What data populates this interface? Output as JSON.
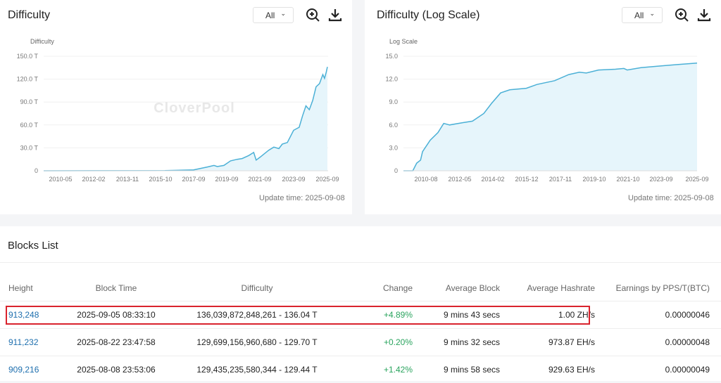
{
  "charts": [
    {
      "title": "Difficulty",
      "range": "All",
      "y_label": "Difficulty",
      "update": "Update time: 2025-09-08"
    },
    {
      "title": "Difficulty (Log Scale)",
      "range": "All",
      "y_label": "Log Scale",
      "update": "Update time: 2025-09-08"
    }
  ],
  "watermark": "CloverPool",
  "icons": [
    "zoom-in-icon",
    "download-icon",
    "chevron-down-icon"
  ],
  "colors": {
    "line": "#4bb0d6",
    "area": "#e6f5fb",
    "positive": "#2aa45e",
    "link": "#1e6fae",
    "highlight": "#d9232d"
  },
  "chart_data": [
    {
      "type": "area",
      "title": "",
      "ylabel": "Difficulty",
      "ylim": [
        0,
        150
      ],
      "yticks": [
        "0",
        "30.0 T",
        "60.0 T",
        "90.0 T",
        "120.0 T",
        "150.0 T"
      ],
      "xticks": [
        "2010-05",
        "2012-02",
        "2013-11",
        "2015-10",
        "2017-09",
        "2019-09",
        "2021-09",
        "2023-09",
        "2025-09"
      ],
      "grid": true,
      "unit": "T",
      "x": [
        2009.0,
        2016.0,
        2017.67,
        2018.5,
        2018.9,
        2019.1,
        2019.5,
        2019.9,
        2020.3,
        2020.6,
        2021.0,
        2021.3,
        2021.45,
        2021.7,
        2022.2,
        2022.5,
        2022.8,
        2023.0,
        2023.3,
        2023.67,
        2024.0,
        2024.2,
        2024.4,
        2024.6,
        2024.8,
        2025.0,
        2025.2,
        2025.4,
        2025.5,
        2025.6,
        2025.67
      ],
      "y": [
        0,
        0.3,
        1.2,
        5,
        7,
        5.5,
        7,
        13,
        15,
        16,
        20,
        24,
        14,
        18,
        27,
        31,
        29,
        35,
        37,
        53,
        57,
        72,
        85,
        80,
        92,
        110,
        114,
        126,
        121,
        129,
        136
      ]
    },
    {
      "type": "area",
      "title": "",
      "ylabel": "Log Scale",
      "ylim": [
        0,
        15
      ],
      "yticks": [
        "0",
        "3.0",
        "6.0",
        "9.0",
        "12.0",
        "15.0"
      ],
      "xticks": [
        "2010-08",
        "2012-05",
        "2014-02",
        "2015-12",
        "2017-11",
        "2019-10",
        "2021-10",
        "2023-09",
        "2025-09"
      ],
      "grid": true,
      "x": [
        2009.0,
        2009.9,
        2010.1,
        2010.3,
        2010.4,
        2010.8,
        2011.2,
        2011.5,
        2011.8,
        2012.5,
        2013.0,
        2013.6,
        2014.0,
        2014.5,
        2015.0,
        2015.9,
        2016.5,
        2017.5,
        2018.3,
        2018.9,
        2019.3,
        2020.0,
        2021.0,
        2021.5,
        2021.7,
        2022.5,
        2023.5,
        2024.5,
        2025.67
      ],
      "y": [
        0,
        0,
        1,
        1.4,
        2.5,
        4,
        5,
        6.2,
        6.0,
        6.3,
        6.5,
        7.5,
        8.8,
        10.2,
        10.6,
        10.8,
        11.3,
        11.8,
        12.6,
        12.9,
        12.8,
        13.2,
        13.3,
        13.4,
        13.2,
        13.5,
        13.7,
        13.9,
        14.1
      ]
    }
  ],
  "blocks": {
    "title": "Blocks List",
    "headers": [
      "Height",
      "Block Time",
      "Difficulty",
      "Change",
      "Average Block",
      "Average Hashrate",
      "Earnings by PPS/T(BTC)"
    ],
    "rows": [
      [
        "913,248",
        "2025-09-05 08:33:10",
        "136,039,872,848,261 - 136.04 T",
        "+4.89%",
        "9 mins 43 secs",
        "1.00 ZH/s",
        "0.00000046"
      ],
      [
        "911,232",
        "2025-08-22 23:47:58",
        "129,699,156,960,680 - 129.70 T",
        "+0.20%",
        "9 mins 32 secs",
        "973.87 EH/s",
        "0.00000048"
      ],
      [
        "909,216",
        "2025-08-08 23:53:06",
        "129,435,235,580,344 - 129.44 T",
        "+1.42%",
        "9 mins 58 secs",
        "929.63 EH/s",
        "0.00000049"
      ]
    ]
  }
}
